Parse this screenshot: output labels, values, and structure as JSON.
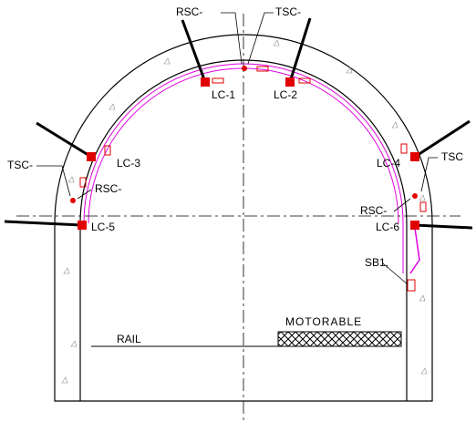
{
  "labels": {
    "rsc_top": "RSC-",
    "tsc_top": "TSC-",
    "lc1": "LC-1",
    "lc2": "LC-2",
    "lc3": "LC-3",
    "lc4": "LC-4",
    "tsc_left": "TSC-",
    "rsc_left": "RSC-",
    "tsc_right": "TSC",
    "rsc_right": "RSC-",
    "lc5": "LC-5",
    "lc6": "LC-6",
    "sb1": "SB1,",
    "motorable": "MOTORABLE",
    "rail": "RAIL"
  }
}
